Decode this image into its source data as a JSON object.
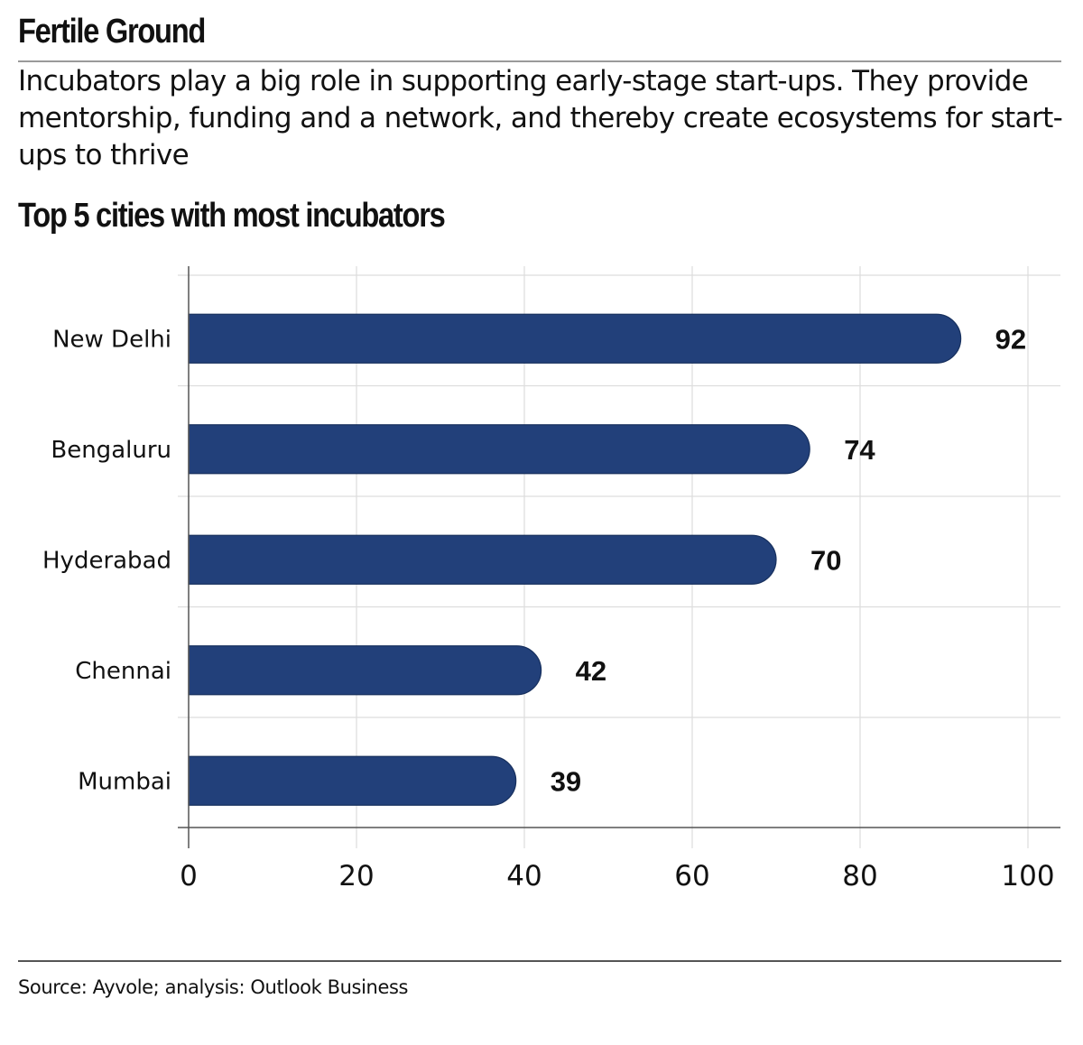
{
  "header": {
    "title": "Fertile Ground",
    "subtitle": "Incubators play a big role in supporting early-stage start-ups. They provide mentorship, funding and a network, and thereby create ecosystems for start-ups to thrive"
  },
  "footer": {
    "source": "Source: Ayvole; analysis: Outlook Business"
  },
  "colors": {
    "bar": "#22407a",
    "bar_stroke": "#17305e",
    "grid": "#dddddd",
    "axis": "#555555"
  },
  "chart_data": {
    "type": "bar",
    "orientation": "horizontal",
    "title": "Top 5 cities with most incubators",
    "xlabel": "",
    "ylabel": "",
    "categories": [
      "New Delhi",
      "Bengaluru",
      "Hyderabad",
      "Chennai",
      "Mumbai"
    ],
    "values": [
      92,
      74,
      70,
      42,
      39
    ],
    "xlim": [
      0,
      100
    ],
    "xticks": [
      0,
      20,
      40,
      60,
      80,
      100
    ],
    "grid": true,
    "data_labels": true,
    "legend": "none"
  }
}
